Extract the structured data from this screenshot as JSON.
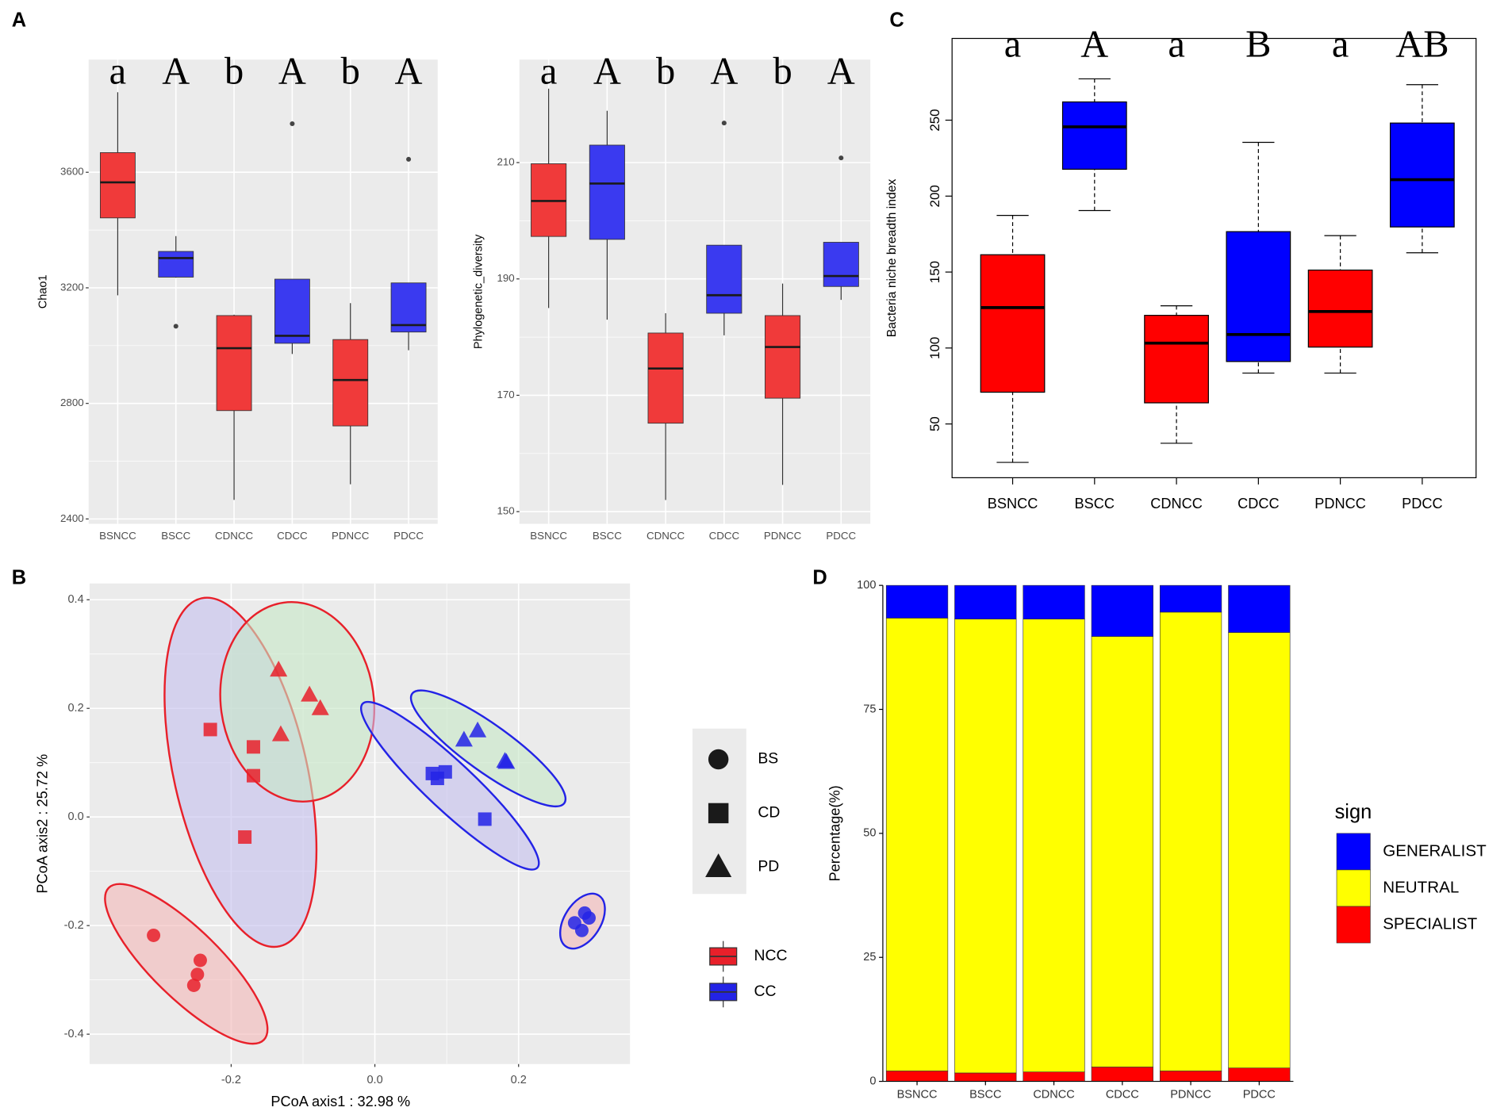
{
  "panels": [
    "A",
    "B",
    "C",
    "D"
  ],
  "chart_data": [
    {
      "type": "box",
      "ylabel": "Chao1",
      "categories": [
        "BSNCC",
        "BSCC",
        "CDNCC",
        "CDCC",
        "PDNCC",
        "PDCC"
      ],
      "colors": [
        "#f03a3a",
        "#3a3af0",
        "#f03a3a",
        "#3a3af0",
        "#f03a3a",
        "#3a3af0"
      ],
      "annotations": [
        "a",
        "A",
        "b",
        "A",
        "b",
        "A"
      ],
      "boxes": [
        {
          "whisker_low": 3174,
          "q1": 3442,
          "median": 3565,
          "q3": 3668,
          "whisker_high": 3877,
          "outliers": []
        },
        {
          "whisker_low": 3235,
          "q1": 3237,
          "median": 3303,
          "q3": 3326,
          "whisker_high": 3379,
          "outliers": [
            3067
          ]
        },
        {
          "whisker_low": 2466,
          "q1": 2775,
          "median": 2991,
          "q3": 3104,
          "whisker_high": 3107,
          "outliers": []
        },
        {
          "whisker_low": 2971,
          "q1": 3008,
          "median": 3034,
          "q3": 3230,
          "whisker_high": 3230,
          "outliers": [
            3768
          ]
        },
        {
          "whisker_low": 2520,
          "q1": 2722,
          "median": 2881,
          "q3": 3021,
          "whisker_high": 3147,
          "outliers": []
        },
        {
          "whisker_low": 2984,
          "q1": 3047,
          "median": 3071,
          "q3": 3217,
          "whisker_high": 3217,
          "outliers": [
            3645
          ]
        }
      ],
      "ylim": [
        2383,
        3990
      ],
      "yticks": [
        2400,
        2800,
        3200,
        3600
      ],
      "grid": true
    },
    {
      "type": "box",
      "ylabel": "Phylogenetic_diversity",
      "categories": [
        "BSNCC",
        "BSCC",
        "CDNCC",
        "CDCC",
        "PDNCC",
        "PDCC"
      ],
      "colors": [
        "#f03a3a",
        "#3a3af0",
        "#f03a3a",
        "#3a3af0",
        "#f03a3a",
        "#3a3af0"
      ],
      "annotations": [
        "a",
        "A",
        "b",
        "A",
        "b",
        "A"
      ],
      "boxes": [
        {
          "whisker_low": 185.0,
          "q1": 197.3,
          "median": 203.4,
          "q3": 209.8,
          "whisker_high": 222.7,
          "outliers": []
        },
        {
          "whisker_low": 183.0,
          "q1": 196.8,
          "median": 206.4,
          "q3": 213.0,
          "whisker_high": 218.9,
          "outliers": []
        },
        {
          "whisker_low": 152.0,
          "q1": 165.2,
          "median": 174.6,
          "q3": 180.7,
          "whisker_high": 184.1,
          "outliers": []
        },
        {
          "whisker_low": 180.3,
          "q1": 184.1,
          "median": 187.2,
          "q3": 195.8,
          "whisker_high": 195.8,
          "outliers": [
            216.8
          ]
        },
        {
          "whisker_low": 154.6,
          "q1": 169.5,
          "median": 178.3,
          "q3": 183.7,
          "whisker_high": 189.2,
          "outliers": []
        },
        {
          "whisker_low": 186.4,
          "q1": 188.7,
          "median": 190.5,
          "q3": 196.3,
          "whisker_high": 196.3,
          "outliers": [
            210.8
          ]
        }
      ],
      "ylim": [
        147.9,
        227.7
      ],
      "yticks": [
        150,
        170,
        190,
        210
      ],
      "grid": true
    },
    {
      "type": "box",
      "ylabel": "Bacteria niche breadth index",
      "categories": [
        "BSNCC",
        "BSCC",
        "CDNCC",
        "CDCC",
        "PDNCC",
        "PDCC"
      ],
      "colors": [
        "#ff0000",
        "#0000ff",
        "#ff0000",
        "#0000ff",
        "#ff0000",
        "#0000ff"
      ],
      "annotations": [
        "a",
        "A",
        "a",
        "B",
        "a",
        "AB"
      ],
      "boxes": [
        {
          "whisker_low": 24.7,
          "q1": 70.9,
          "median": 126.6,
          "q3": 161.4,
          "whisker_high": 187.3,
          "outliers": []
        },
        {
          "whisker_low": 190.5,
          "q1": 217.7,
          "median": 245.6,
          "q3": 262.0,
          "whisker_high": 277.2,
          "outliers": []
        },
        {
          "whisker_low": 37.3,
          "q1": 63.9,
          "median": 103.2,
          "q3": 121.5,
          "whisker_high": 127.8,
          "outliers": []
        },
        {
          "whisker_low": 83.5,
          "q1": 91.1,
          "median": 108.9,
          "q3": 176.6,
          "whisker_high": 235.4,
          "outliers": []
        },
        {
          "whisker_low": 83.5,
          "q1": 100.6,
          "median": 124.0,
          "q3": 151.3,
          "whisker_high": 174.0,
          "outliers": []
        },
        {
          "whisker_low": 162.7,
          "q1": 179.7,
          "median": 210.8,
          "q3": 248.1,
          "whisker_high": 273.4,
          "outliers": []
        }
      ],
      "ylim": [
        14.6,
        303.8
      ],
      "yticks": [
        50,
        100,
        150,
        200,
        250
      ],
      "grid": false
    },
    {
      "type": "scatter",
      "xlabel": "PCoA axis1 : 32.98 %",
      "ylabel": "PCoA axis2 : 25.72 %",
      "xlim": [
        -0.397,
        0.355
      ],
      "xticks": [
        -0.2,
        {
          "value": 0,
          "label": "0.0"
        },
        0.2
      ],
      "ylim": [
        -0.455,
        0.43
      ],
      "yticks": [
        -0.4,
        -0.2,
        {
          "value": 0,
          "label": "0.0"
        },
        0.2,
        0.4
      ],
      "grid": true,
      "shapes": [
        {
          "name": "BS",
          "fill": "#f4b8b8"
        },
        {
          "name": "CD",
          "fill": "#c4c0ee"
        },
        {
          "name": "PD",
          "fill": "#c6e8c6"
        }
      ],
      "groups": [
        {
          "name": "NCC",
          "color": "#e8202a"
        },
        {
          "name": "CC",
          "color": "#2323e6"
        }
      ],
      "series": [
        {
          "shape": "BS",
          "group": "NCC",
          "x": [
            -0.308,
            -0.243,
            -0.247,
            -0.252
          ],
          "values": [
            -0.218,
            -0.264,
            -0.29,
            -0.31
          ]
        },
        {
          "shape": "CD",
          "group": "NCC",
          "x": [
            -0.229,
            -0.169,
            -0.169,
            -0.181
          ],
          "values": [
            0.161,
            0.129,
            0.076,
            -0.037
          ]
        },
        {
          "shape": "PD",
          "group": "NCC",
          "x": [
            -0.134,
            -0.091,
            -0.076,
            -0.131
          ],
          "values": [
            0.271,
            0.225,
            0.2,
            0.152
          ]
        },
        {
          "shape": "BS",
          "group": "CC",
          "x": [
            0.292,
            0.278,
            0.298,
            0.288
          ],
          "values": [
            -0.177,
            -0.195,
            -0.186,
            -0.209
          ]
        },
        {
          "shape": "CD",
          "group": "CC",
          "x": [
            0.08,
            0.098,
            0.087,
            0.153
          ],
          "values": [
            0.08,
            0.083,
            0.071,
            -0.004
          ]
        },
        {
          "shape": "PD",
          "group": "CC",
          "x": [
            0.124,
            0.143,
            0.183,
            0.181
          ],
          "values": [
            0.142,
            0.159,
            0.101,
            0.103
          ]
        }
      ]
    },
    {
      "type": "stacked_bar",
      "ylabel": "Percentage(%)",
      "legend_title": "sign",
      "categories": [
        "BSNCC",
        "BSCC",
        "CDNCC",
        "CDCC",
        "PDNCC",
        "PDCC"
      ],
      "series": [
        {
          "name": "SPECIALIST",
          "color": "#ff0000",
          "values": [
            2.1,
            1.7,
            1.9,
            2.9,
            2.1,
            2.7
          ]
        },
        {
          "name": "NEUTRAL",
          "color": "#ffff00",
          "values": [
            91.3,
            91.5,
            91.3,
            86.8,
            92.5,
            87.8
          ]
        },
        {
          "name": "GENERALIST",
          "color": "#0000ff",
          "values": [
            6.6,
            6.8,
            6.8,
            10.3,
            5.4,
            9.5
          ]
        }
      ],
      "ylim": [
        0,
        100
      ],
      "yticks": [
        0,
        25,
        50,
        75,
        100
      ]
    }
  ]
}
